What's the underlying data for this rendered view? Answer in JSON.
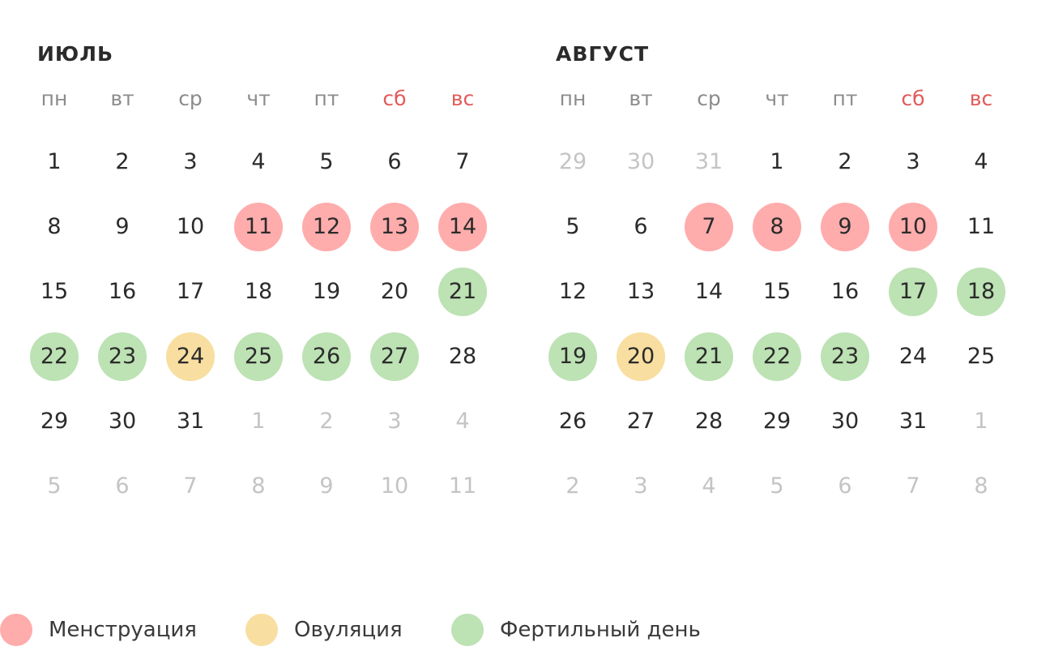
{
  "weekdays": [
    "пн",
    "вт",
    "ср",
    "чт",
    "пт",
    "сб",
    "вс"
  ],
  "months": [
    {
      "title": "ИЮЛЬ",
      "weeks": [
        [
          {
            "d": "1"
          },
          {
            "d": "2"
          },
          {
            "d": "3"
          },
          {
            "d": "4"
          },
          {
            "d": "5"
          },
          {
            "d": "6"
          },
          {
            "d": "7"
          }
        ],
        [
          {
            "d": "8"
          },
          {
            "d": "9"
          },
          {
            "d": "10"
          },
          {
            "d": "11",
            "mark": "menstruation"
          },
          {
            "d": "12",
            "mark": "menstruation"
          },
          {
            "d": "13",
            "mark": "menstruation"
          },
          {
            "d": "14",
            "mark": "menstruation"
          }
        ],
        [
          {
            "d": "15"
          },
          {
            "d": "16"
          },
          {
            "d": "17"
          },
          {
            "d": "18"
          },
          {
            "d": "19"
          },
          {
            "d": "20"
          },
          {
            "d": "21",
            "mark": "fertile"
          }
        ],
        [
          {
            "d": "22",
            "mark": "fertile"
          },
          {
            "d": "23",
            "mark": "fertile"
          },
          {
            "d": "24",
            "mark": "ovulation"
          },
          {
            "d": "25",
            "mark": "fertile"
          },
          {
            "d": "26",
            "mark": "fertile"
          },
          {
            "d": "27",
            "mark": "fertile"
          },
          {
            "d": "28"
          }
        ],
        [
          {
            "d": "29"
          },
          {
            "d": "30"
          },
          {
            "d": "31"
          },
          {
            "d": "1",
            "other": true
          },
          {
            "d": "2",
            "other": true
          },
          {
            "d": "3",
            "other": true
          },
          {
            "d": "4",
            "other": true
          }
        ],
        [
          {
            "d": "5",
            "other": true
          },
          {
            "d": "6",
            "other": true
          },
          {
            "d": "7",
            "other": true
          },
          {
            "d": "8",
            "other": true
          },
          {
            "d": "9",
            "other": true
          },
          {
            "d": "10",
            "other": true
          },
          {
            "d": "11",
            "other": true
          }
        ]
      ]
    },
    {
      "title": "АВГУСТ",
      "weeks": [
        [
          {
            "d": "29",
            "other": true
          },
          {
            "d": "30",
            "other": true
          },
          {
            "d": "31",
            "other": true
          },
          {
            "d": "1"
          },
          {
            "d": "2"
          },
          {
            "d": "3"
          },
          {
            "d": "4"
          }
        ],
        [
          {
            "d": "5"
          },
          {
            "d": "6"
          },
          {
            "d": "7",
            "mark": "menstruation"
          },
          {
            "d": "8",
            "mark": "menstruation"
          },
          {
            "d": "9",
            "mark": "menstruation"
          },
          {
            "d": "10",
            "mark": "menstruation"
          },
          {
            "d": "11"
          }
        ],
        [
          {
            "d": "12"
          },
          {
            "d": "13"
          },
          {
            "d": "14"
          },
          {
            "d": "15"
          },
          {
            "d": "16"
          },
          {
            "d": "17",
            "mark": "fertile"
          },
          {
            "d": "18",
            "mark": "fertile"
          }
        ],
        [
          {
            "d": "19",
            "mark": "fertile"
          },
          {
            "d": "20",
            "mark": "ovulation"
          },
          {
            "d": "21",
            "mark": "fertile"
          },
          {
            "d": "22",
            "mark": "fertile"
          },
          {
            "d": "23",
            "mark": "fertile"
          },
          {
            "d": "24"
          },
          {
            "d": "25"
          }
        ],
        [
          {
            "d": "26"
          },
          {
            "d": "27"
          },
          {
            "d": "28"
          },
          {
            "d": "29"
          },
          {
            "d": "30"
          },
          {
            "d": "31"
          },
          {
            "d": "1",
            "other": true
          }
        ],
        [
          {
            "d": "2",
            "other": true
          },
          {
            "d": "3",
            "other": true
          },
          {
            "d": "4",
            "other": true
          },
          {
            "d": "5",
            "other": true
          },
          {
            "d": "6",
            "other": true
          },
          {
            "d": "7",
            "other": true
          },
          {
            "d": "8",
            "other": true
          }
        ]
      ]
    }
  ],
  "legend": [
    {
      "key": "menstruation",
      "label": "Менструация",
      "color": "#ffacac"
    },
    {
      "key": "ovulation",
      "label": "Овуляция",
      "color": "#f8dea0"
    },
    {
      "key": "fertile",
      "label": "Фертильный день",
      "color": "#bde2b4"
    }
  ],
  "colors": {
    "weekend": "#e25a5a",
    "weekday": "#8c8c8c",
    "day_text": "#2b2b2b",
    "other_month_text": "#c4c4c4"
  }
}
